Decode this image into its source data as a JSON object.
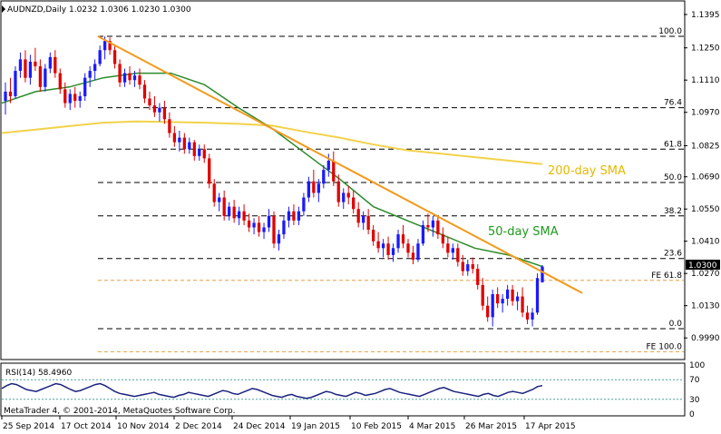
{
  "colors": {
    "sma50": "#2a8a2a",
    "sma200": "#f2d24a",
    "trendline": "#f39a1c",
    "fe_line": "#e8a040",
    "rsi_line": "#1a237e",
    "bull": "#1a1aff",
    "bear": "#e00000",
    "price_box": "#000000"
  },
  "chart_data": [
    {
      "type": "candlestick",
      "title": "AUDNZD,Daily  1.0232 1.0306 1.0230 1.0300",
      "current_price_label": "1.0300",
      "y_ticks": [
        "1.1395",
        "1.1250",
        "1.1110",
        "1.0970",
        "1.0825",
        "1.0690",
        "1.0550",
        "1.0410",
        "1.0270",
        "1.0130",
        "0.9990"
      ],
      "x_ticks": [
        "25 Sep 2014",
        "17 Oct 2014",
        "10 Nov 2014",
        "2 Dec 2014",
        "24 Dec 2014",
        "19 Jan 2015",
        "10 Feb 2015",
        "4 Mar 2015",
        "26 Mar 2015",
        "17 Apr 2015"
      ],
      "ylim": [
        0.99,
        1.145
      ],
      "fib_levels": [
        {
          "label": "100.0",
          "value": 1.13
        },
        {
          "label": "76.4",
          "value": 1.099
        },
        {
          "label": "61.8",
          "value": 1.081
        },
        {
          "label": "50.0",
          "value": 1.0665
        },
        {
          "label": "38.2",
          "value": 1.052
        },
        {
          "label": "23.6",
          "value": 1.0335
        },
        {
          "label": "FE 61.8",
          "value": 1.024
        },
        {
          "label": "0.0",
          "value": 1.003
        },
        {
          "label": "FE 100.0",
          "value": 0.993
        }
      ],
      "annotations": [
        {
          "text": "50-day SMA",
          "series": "sma50"
        },
        {
          "text": "200-day SMA",
          "series": "sma200"
        }
      ],
      "sma50": [
        1.101,
        1.106,
        1.108,
        1.112,
        1.114,
        1.114,
        1.109,
        1.099,
        1.09,
        1.079,
        1.068,
        1.056,
        1.05,
        1.044,
        1.038,
        1.035,
        1.03
      ],
      "sma200": [
        1.088,
        1.0895,
        1.091,
        1.0925,
        1.093,
        1.0928,
        1.0925,
        1.092,
        1.0912,
        1.0885,
        1.086,
        1.083,
        1.0805,
        1.079,
        1.0775,
        1.076,
        1.0745
      ],
      "trendline": {
        "start": 1.13,
        "end": 1.0225
      },
      "ohlc": [
        [
          1.102,
          1.11,
          1.096,
          1.106
        ],
        [
          1.106,
          1.112,
          1.101,
          1.104
        ],
        [
          1.104,
          1.117,
          1.103,
          1.115
        ],
        [
          1.115,
          1.123,
          1.112,
          1.12
        ],
        [
          1.12,
          1.124,
          1.11,
          1.112
        ],
        [
          1.112,
          1.122,
          1.109,
          1.119
        ],
        [
          1.119,
          1.125,
          1.115,
          1.117
        ],
        [
          1.117,
          1.12,
          1.106,
          1.108
        ],
        [
          1.108,
          1.118,
          1.106,
          1.116
        ],
        [
          1.116,
          1.123,
          1.114,
          1.121
        ],
        [
          1.121,
          1.124,
          1.112,
          1.114
        ],
        [
          1.114,
          1.116,
          1.105,
          1.107
        ],
        [
          1.107,
          1.11,
          1.099,
          1.101
        ],
        [
          1.101,
          1.107,
          1.098,
          1.105
        ],
        [
          1.105,
          1.108,
          1.099,
          1.102
        ],
        [
          1.102,
          1.106,
          1.099,
          1.104
        ],
        [
          1.104,
          1.114,
          1.102,
          1.112
        ],
        [
          1.112,
          1.117,
          1.108,
          1.115
        ],
        [
          1.115,
          1.12,
          1.111,
          1.118
        ],
        [
          1.118,
          1.126,
          1.117,
          1.124
        ],
        [
          1.124,
          1.13,
          1.12,
          1.128
        ],
        [
          1.128,
          1.1295,
          1.122,
          1.124
        ],
        [
          1.124,
          1.126,
          1.116,
          1.118
        ],
        [
          1.118,
          1.12,
          1.108,
          1.11
        ],
        [
          1.11,
          1.116,
          1.108,
          1.114
        ],
        [
          1.114,
          1.117,
          1.109,
          1.111
        ],
        [
          1.111,
          1.115,
          1.108,
          1.113
        ],
        [
          1.113,
          1.116,
          1.107,
          1.109
        ],
        [
          1.109,
          1.111,
          1.101,
          1.103
        ],
        [
          1.103,
          1.106,
          1.098,
          1.1
        ],
        [
          1.1,
          1.104,
          1.095,
          1.097
        ],
        [
          1.097,
          1.101,
          1.093,
          1.099
        ],
        [
          1.099,
          1.102,
          1.092,
          1.094
        ],
        [
          1.094,
          1.097,
          1.086,
          1.088
        ],
        [
          1.088,
          1.091,
          1.082,
          1.084
        ],
        [
          1.084,
          1.089,
          1.08,
          1.086
        ],
        [
          1.086,
          1.088,
          1.079,
          1.081
        ],
        [
          1.081,
          1.086,
          1.079,
          1.084
        ],
        [
          1.084,
          1.085,
          1.076,
          1.078
        ],
        [
          1.078,
          1.083,
          1.076,
          1.081
        ],
        [
          1.081,
          1.083,
          1.075,
          1.077
        ],
        [
          1.077,
          1.079,
          1.064,
          1.066
        ],
        [
          1.066,
          1.068,
          1.056,
          1.058
        ],
        [
          1.058,
          1.062,
          1.054,
          1.06
        ],
        [
          1.06,
          1.063,
          1.05,
          1.052
        ],
        [
          1.052,
          1.058,
          1.05,
          1.056
        ],
        [
          1.056,
          1.059,
          1.049,
          1.051
        ],
        [
          1.051,
          1.056,
          1.048,
          1.054
        ],
        [
          1.054,
          1.057,
          1.048,
          1.05
        ],
        [
          1.05,
          1.053,
          1.045,
          1.047
        ],
        [
          1.047,
          1.051,
          1.044,
          1.049
        ],
        [
          1.049,
          1.052,
          1.043,
          1.045
        ],
        [
          1.045,
          1.049,
          1.042,
          1.047
        ],
        [
          1.047,
          1.055,
          1.045,
          1.052
        ],
        [
          1.052,
          1.054,
          1.038,
          1.04
        ],
        [
          1.04,
          1.046,
          1.037,
          1.044
        ],
        [
          1.044,
          1.052,
          1.042,
          1.05
        ],
        [
          1.05,
          1.056,
          1.047,
          1.054
        ],
        [
          1.054,
          1.057,
          1.048,
          1.05
        ],
        [
          1.05,
          1.056,
          1.048,
          1.054
        ],
        [
          1.054,
          1.062,
          1.052,
          1.06
        ],
        [
          1.06,
          1.069,
          1.058,
          1.067
        ],
        [
          1.067,
          1.072,
          1.06,
          1.062
        ],
        [
          1.062,
          1.068,
          1.058,
          1.066
        ],
        [
          1.066,
          1.074,
          1.064,
          1.072
        ],
        [
          1.072,
          1.079,
          1.069,
          1.076
        ],
        [
          1.076,
          1.08,
          1.065,
          1.067
        ],
        [
          1.067,
          1.07,
          1.056,
          1.058
        ],
        [
          1.058,
          1.064,
          1.055,
          1.062
        ],
        [
          1.062,
          1.065,
          1.057,
          1.06
        ],
        [
          1.06,
          1.063,
          1.053,
          1.055
        ],
        [
          1.055,
          1.058,
          1.047,
          1.049
        ],
        [
          1.049,
          1.054,
          1.046,
          1.052
        ],
        [
          1.052,
          1.055,
          1.044,
          1.046
        ],
        [
          1.046,
          1.048,
          1.039,
          1.041
        ],
        [
          1.041,
          1.045,
          1.036,
          1.038
        ],
        [
          1.038,
          1.042,
          1.034,
          1.04
        ],
        [
          1.04,
          1.043,
          1.033,
          1.035
        ],
        [
          1.035,
          1.04,
          1.032,
          1.038
        ],
        [
          1.038,
          1.046,
          1.036,
          1.044
        ],
        [
          1.044,
          1.048,
          1.038,
          1.04
        ],
        [
          1.04,
          1.042,
          1.034,
          1.036
        ],
        [
          1.036,
          1.039,
          1.031,
          1.033
        ],
        [
          1.033,
          1.042,
          1.032,
          1.04
        ],
        [
          1.04,
          1.05,
          1.039,
          1.048
        ],
        [
          1.048,
          1.053,
          1.045,
          1.047
        ],
        [
          1.047,
          1.052,
          1.043,
          1.05
        ],
        [
          1.05,
          1.052,
          1.042,
          1.044
        ],
        [
          1.044,
          1.047,
          1.038,
          1.04
        ],
        [
          1.04,
          1.043,
          1.034,
          1.036
        ],
        [
          1.036,
          1.04,
          1.033,
          1.038
        ],
        [
          1.038,
          1.04,
          1.03,
          1.032
        ],
        [
          1.032,
          1.035,
          1.026,
          1.028
        ],
        [
          1.028,
          1.033,
          1.026,
          1.031
        ],
        [
          1.031,
          1.034,
          1.027,
          1.029
        ],
        [
          1.029,
          1.031,
          1.02,
          1.022
        ],
        [
          1.022,
          1.025,
          1.011,
          1.013
        ],
        [
          1.013,
          1.017,
          1.006,
          1.008
        ],
        [
          1.008,
          1.02,
          1.004,
          1.018
        ],
        [
          1.018,
          1.021,
          1.012,
          1.014
        ],
        [
          1.014,
          1.018,
          1.01,
          1.016
        ],
        [
          1.016,
          1.022,
          1.013,
          1.02
        ],
        [
          1.02,
          1.022,
          1.013,
          1.015
        ],
        [
          1.015,
          1.019,
          1.011,
          1.017
        ],
        [
          1.017,
          1.021,
          1.008,
          1.01
        ],
        [
          1.01,
          1.013,
          1.005,
          1.007
        ],
        [
          1.007,
          1.012,
          1.004,
          1.01
        ],
        [
          1.01,
          1.027,
          1.009,
          1.025
        ],
        [
          1.0232,
          1.0306,
          1.023,
          1.03
        ]
      ]
    },
    {
      "type": "line",
      "title": "RSI(14) 58.4960",
      "y_ticks": [
        "100",
        "70",
        "30",
        "0"
      ],
      "levels": [
        70,
        30
      ],
      "ylim": [
        0,
        100
      ],
      "values": [
        52,
        58,
        62,
        60,
        55,
        50,
        48,
        46,
        50,
        54,
        58,
        62,
        60,
        55,
        50,
        46,
        48,
        52,
        56,
        60,
        62,
        58,
        52,
        46,
        42,
        40,
        38,
        36,
        38,
        40,
        42,
        44,
        40,
        38,
        36,
        34,
        38,
        40,
        44,
        42,
        40,
        38,
        36,
        40,
        44,
        48,
        46,
        42,
        40,
        44,
        48,
        52,
        50,
        46,
        42,
        38,
        36,
        34,
        38,
        40,
        36,
        34,
        32,
        34,
        38,
        42,
        46,
        44,
        40,
        38,
        36,
        40,
        44,
        42,
        38,
        40,
        42,
        46,
        50,
        52,
        48,
        44,
        42,
        40,
        38,
        36,
        40,
        44,
        48,
        52,
        54,
        50,
        46,
        44,
        42,
        40,
        38,
        36,
        40,
        42,
        38,
        36,
        40,
        44,
        46,
        44,
        42,
        46,
        50,
        56,
        58
      ]
    }
  ],
  "footer": {
    "copyright": "MetaTrader 4, © 2001-2014, MetaQuotes Software Corp."
  }
}
